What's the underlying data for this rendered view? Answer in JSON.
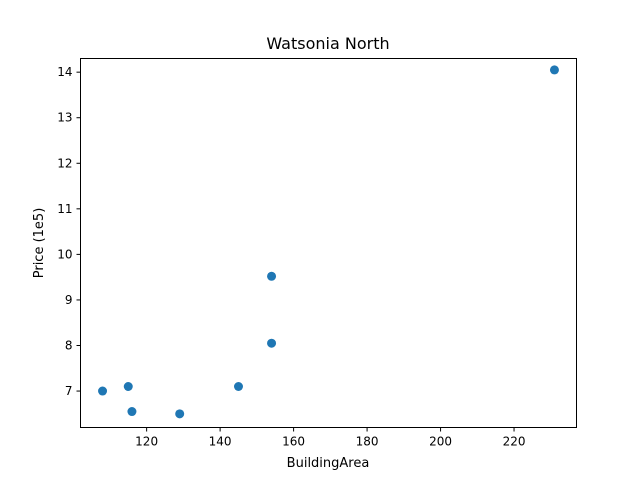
{
  "chart_data": {
    "type": "scatter",
    "title": "Watsonia North",
    "xlabel": "BuildingArea",
    "ylabel": "Price (1e5)",
    "xlim": [
      102,
      237
    ],
    "ylim": [
      6.2,
      14.3
    ],
    "xticks": [
      120,
      140,
      160,
      180,
      200,
      220
    ],
    "yticks": [
      7,
      8,
      9,
      10,
      11,
      12,
      13,
      14
    ],
    "grid": false,
    "marker_color": "#1f77b4",
    "points": [
      {
        "x": 108,
        "y": 7.0
      },
      {
        "x": 115,
        "y": 7.1
      },
      {
        "x": 116,
        "y": 6.55
      },
      {
        "x": 129,
        "y": 6.5
      },
      {
        "x": 145,
        "y": 7.1
      },
      {
        "x": 154,
        "y": 8.05
      },
      {
        "x": 154,
        "y": 9.52
      },
      {
        "x": 231,
        "y": 14.05
      }
    ]
  }
}
